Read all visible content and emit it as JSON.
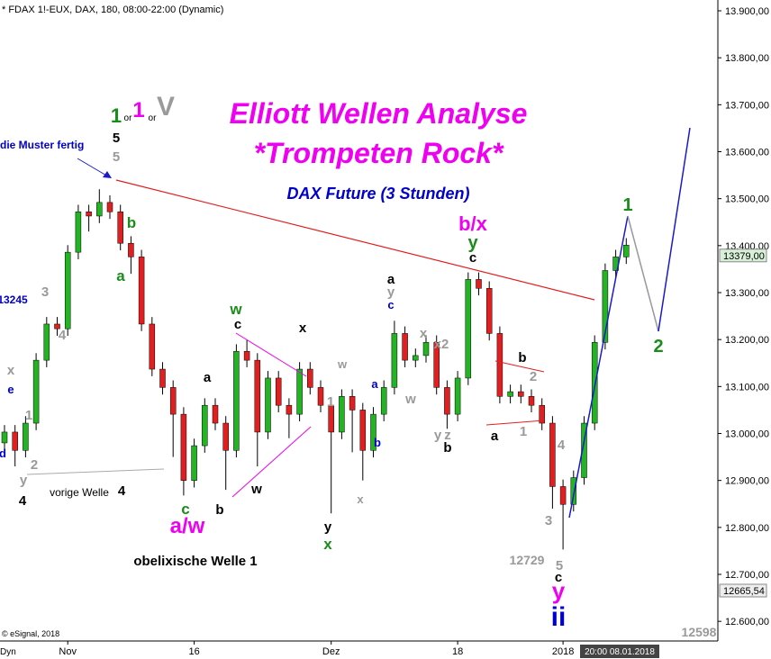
{
  "chart_data": {
    "type": "candlestick",
    "header": "* FDAX 1!-EUX, DAX, 180, 08:00-22:00 (Dynamic)",
    "title": "Elliott Wellen Analyse",
    "subtitle": "*Trompeten Rock*",
    "subtitle2": "DAX Future (3 Stunden)",
    "categories": [
      null,
      null,
      null,
      null,
      null,
      null,
      "Nov",
      null,
      null,
      null,
      null,
      null,
      null,
      null,
      null,
      null,
      null,
      null,
      "16",
      null,
      null,
      null,
      null,
      null,
      null,
      null,
      null,
      null,
      null,
      null,
      null,
      "Dez",
      null,
      null,
      null,
      null,
      null,
      null,
      null,
      null,
      null,
      null,
      null,
      "18",
      null,
      null,
      null,
      null,
      null,
      null,
      null,
      null,
      null,
      "2018",
      null,
      null,
      null,
      null,
      null,
      null
    ],
    "open": [
      12980,
      13003,
      12964,
      13022,
      13156,
      13233,
      13223,
      13386,
      13472,
      13463,
      13492,
      13472,
      13405,
      13376,
      13233,
      13137,
      13098,
      13041,
      12900,
      12974,
      13060,
      13022,
      12964,
      13175,
      13156,
      13003,
      13118,
      13060,
      13041,
      13137,
      13098,
      13060,
      13003,
      13079,
      13050,
      12964,
      13041,
      13098,
      13213,
      13156,
      13166,
      13194,
      13098,
      13041,
      13118,
      13328,
      13309,
      13213,
      13079,
      13089,
      13079,
      13060,
      13022,
      12887,
      12849,
      12906,
      13022,
      13194,
      13347,
      13376
    ],
    "high": [
      13018,
      13018,
      13037,
      13171,
      13248,
      13248,
      13401,
      13487,
      13487,
      13520,
      13507,
      13487,
      13420,
      13391,
      13248,
      13152,
      13113,
      13056,
      12989,
      13075,
      13075,
      13037,
      13190,
      13200,
      13171,
      13133,
      13133,
      13075,
      13152,
      13152,
      13113,
      13075,
      13094,
      13094,
      13065,
      13056,
      13113,
      13240,
      13228,
      13181,
      13209,
      13209,
      13113,
      13133,
      13343,
      13343,
      13324,
      13228,
      13104,
      13104,
      13094,
      13075,
      13037,
      12902,
      12921,
      13037,
      13209,
      13362,
      13391,
      13416
    ],
    "low": [
      12965,
      12930,
      12949,
      13007,
      13141,
      13208,
      13208,
      13371,
      13430,
      13448,
      13457,
      13390,
      13340,
      13218,
      13122,
      13083,
      12950,
      12868,
      12885,
      12959,
      13007,
      12880,
      12949,
      13141,
      12930,
      12988,
      13045,
      12990,
      13026,
      13083,
      13045,
      12830,
      12988,
      12960,
      12900,
      12949,
      13026,
      13083,
      13141,
      13141,
      13151,
      13083,
      13010,
      13026,
      13103,
      13294,
      13198,
      13064,
      13064,
      13064,
      13045,
      13007,
      12840,
      12753,
      12834,
      12891,
      13007,
      13179,
      13332,
      13361
    ],
    "close": [
      13003,
      12964,
      13022,
      13156,
      13233,
      13223,
      13386,
      13472,
      13463,
      13492,
      13472,
      13405,
      13376,
      13233,
      13137,
      13098,
      13041,
      12900,
      12974,
      13060,
      13022,
      12964,
      13175,
      13156,
      13003,
      13118,
      13060,
      13041,
      13137,
      13098,
      13060,
      13003,
      13079,
      13050,
      12964,
      13041,
      13098,
      13213,
      13156,
      13166,
      13194,
      13098,
      13041,
      13118,
      13328,
      13309,
      13213,
      13079,
      13089,
      13079,
      13060,
      13022,
      12887,
      12849,
      12906,
      13022,
      13194,
      13347,
      13376,
      13401
    ],
    "up_color": "#22b422",
    "down_color": "#e02020",
    "ylim": [
      12562,
      13923
    ],
    "yticks": [
      {
        "value": 13900,
        "label": "13.900,00"
      },
      {
        "value": 13800,
        "label": "13.800,00"
      },
      {
        "value": 13700,
        "label": "13.700,00"
      },
      {
        "value": 13600,
        "label": "13.600,00"
      },
      {
        "value": 13500,
        "label": "13.500,00"
      },
      {
        "value": 13400,
        "label": "13.400,00"
      },
      {
        "value": 13300,
        "label": "13.300,00"
      },
      {
        "value": 13200,
        "label": "13.200,00"
      },
      {
        "value": 13100,
        "label": "13.100,00"
      },
      {
        "value": 13000,
        "label": "13.000,00"
      },
      {
        "value": 12900,
        "label": "12.900,00"
      },
      {
        "value": 12800,
        "label": "12.800,00"
      },
      {
        "value": 12700,
        "label": "12.700,00"
      },
      {
        "value": 12600,
        "label": "12.600,00"
      }
    ],
    "price_markers": [
      {
        "value": 13379,
        "label": "13379,00"
      },
      {
        "value": 12665.54,
        "label": "12665,54"
      }
    ],
    "cursor_label": "20:00 08.01.2018",
    "annotations": [
      "1",
      "or",
      "1",
      "or",
      "V",
      "5",
      "5",
      "die Muster fertig",
      "b/x",
      "y",
      "c",
      "1",
      "2",
      "b",
      "a",
      "3",
      "13245",
      "4",
      "x",
      "e",
      "1",
      "d",
      "2",
      "y",
      "4",
      "vorige Welle",
      "4",
      "c",
      "a/w",
      "b",
      "w",
      "c",
      "a",
      "w",
      "x",
      "w",
      "1",
      "a",
      "b",
      "x",
      "y",
      "x",
      "a",
      "y",
      "c",
      "x",
      "x2",
      "w",
      "y",
      "z",
      "b",
      "b",
      "2",
      "1",
      "a",
      "4",
      "3",
      "12729",
      "5",
      "c",
      "y",
      "ii",
      "obelixische Welle 1",
      "© eSignal, 2018",
      "12598",
      "Dyn"
    ]
  }
}
